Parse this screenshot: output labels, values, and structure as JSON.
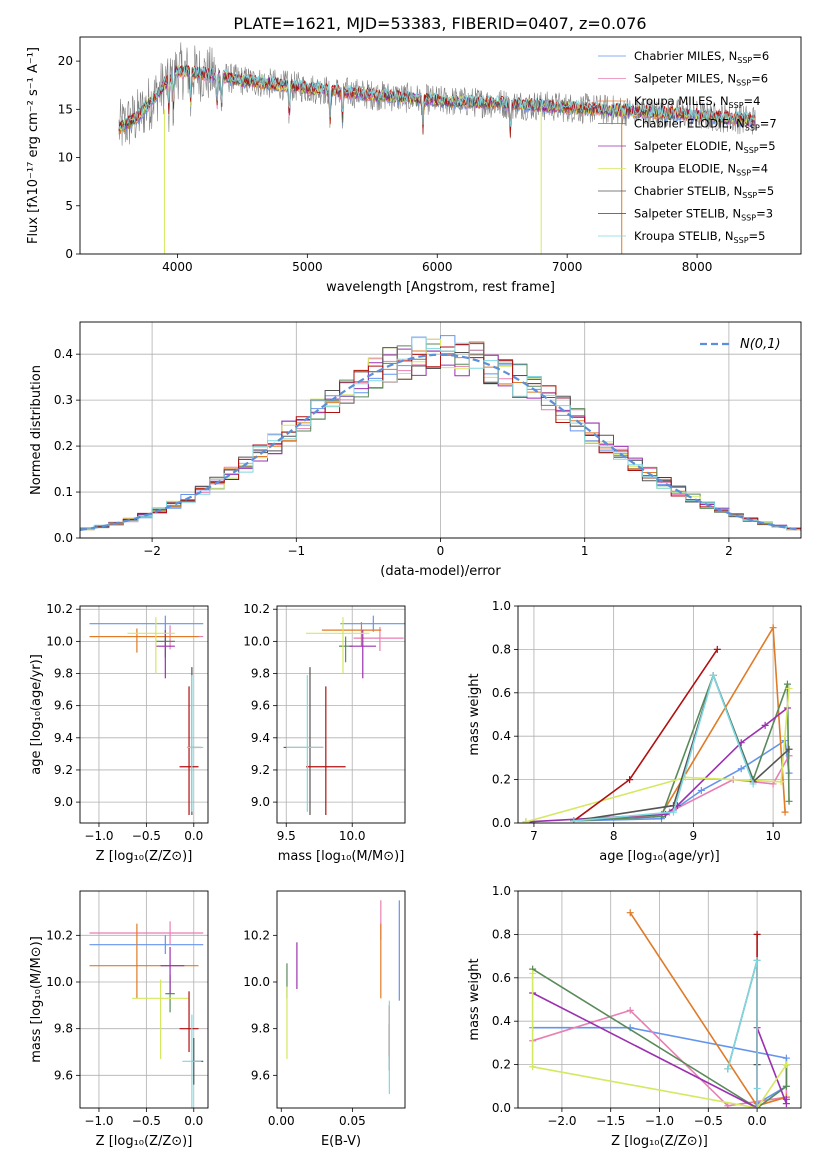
{
  "figure_title": "PLATE=1621, MJD=53383, FIBERID=0407, z=0.076",
  "models": [
    {
      "label": "Chabrier MILES, N",
      "sub": "SSP",
      "n": "=6",
      "color": "#6495ed"
    },
    {
      "label": "Salpeter MILES, N",
      "sub": "SSP",
      "n": "=6",
      "color": "#e87fb3"
    },
    {
      "label": "Kroupa MILES, N",
      "sub": "SSP",
      "n": "=4",
      "color": "#e07b27"
    },
    {
      "label": "Chabrier ELODIE, N",
      "sub": "SSP",
      "n": "=7",
      "color": "#5a8a5a"
    },
    {
      "label": "Salpeter ELODIE, N",
      "sub": "SSP",
      "n": "=5",
      "color": "#9b30b0"
    },
    {
      "label": "Kroupa ELODIE, N",
      "sub": "SSP",
      "n": "=4",
      "color": "#d4e860"
    },
    {
      "label": "Chabrier STELIB, N",
      "sub": "SSP",
      "n": "=5",
      "color": "#555555"
    },
    {
      "label": "Salpeter STELIB, N",
      "sub": "SSP",
      "n": "=3",
      "color": "#b01010"
    },
    {
      "label": "Kroupa STELIB, N",
      "sub": "SSP",
      "n": "=5",
      "color": "#7fd8e0"
    }
  ],
  "chart_data": [
    {
      "id": "spectrum",
      "type": "line",
      "xlabel": "wavelength [Angstrom, rest frame]",
      "ylabel": "Flux [fλ10⁻¹⁷ erg cm⁻² s⁻¹ A⁻¹]",
      "xlim": [
        3250,
        8800
      ],
      "ylim": [
        0,
        22.5
      ],
      "xticks": [
        "4000",
        "5000",
        "6000",
        "7000",
        "8000"
      ],
      "yticks": [
        "0",
        "5",
        "10",
        "15",
        "20"
      ],
      "continuum_anchors": {
        "x": [
          3550,
          3700,
          3900,
          4000,
          4200,
          4500,
          5000,
          5500,
          6000,
          6500,
          7000,
          7500,
          8000,
          8500
        ],
        "y": [
          13.0,
          14.3,
          17.5,
          19.0,
          18.7,
          18.0,
          17.2,
          16.5,
          15.9,
          15.6,
          15.2,
          14.8,
          14.4,
          13.8
        ]
      },
      "absorption_lines": [
        3934,
        3969,
        4102,
        4304,
        4340,
        4861,
        5175,
        5270,
        5890,
        6563,
        8498,
        8542,
        8662
      ]
    },
    {
      "id": "residuals",
      "type": "histogram",
      "xlabel": "(data-model)/error",
      "ylabel": "Normed distribution",
      "xlim": [
        -2.5,
        2.5
      ],
      "ylim": [
        0,
        0.47
      ],
      "xticks": [
        "−2",
        "−1",
        "0",
        "1",
        "2"
      ],
      "yticks": [
        "0.0",
        "0.1",
        "0.2",
        "0.3",
        "0.4"
      ],
      "grid": true,
      "bin_width": 0.1,
      "curve_label": "N(0,1)",
      "curve_color": "#5b8fd9"
    },
    {
      "id": "age-vs-z",
      "type": "errorbar",
      "xlabel": "Z [log₁₀(Z/Z⊙)]",
      "ylabel": "age  [log₁₀(age/yr)]",
      "xlim": [
        -1.2,
        0.15
      ],
      "ylim": [
        8.87,
        10.22
      ],
      "xticks": [
        "−1.0",
        "−0.5",
        "0.0"
      ],
      "yticks": [
        "9.0",
        "9.2",
        "9.4",
        "9.6",
        "9.8",
        "10.0",
        "10.2"
      ],
      "grid": true,
      "points": [
        {
          "m": 0,
          "x": -0.3,
          "y": 10.11,
          "xe": [
            0.8,
            0.4
          ],
          "ye": [
            0.05,
            0.05
          ]
        },
        {
          "m": 1,
          "x": -0.25,
          "y": 10.03,
          "xe": [
            0.85,
            0.35
          ],
          "ye": [
            0.08,
            0.07
          ]
        },
        {
          "m": 2,
          "x": -0.6,
          "y": 10.03,
          "xe": [
            0.5,
            0.65
          ],
          "ye": [
            0.1,
            0.05
          ]
        },
        {
          "m": 3,
          "x": -0.3,
          "y": 10.0,
          "xe": [
            0.1,
            0.1
          ],
          "ye": [
            0.1,
            0.06
          ]
        },
        {
          "m": 4,
          "x": -0.3,
          "y": 9.97,
          "xe": [
            0.1,
            0.1
          ],
          "ye": [
            0.2,
            0.1
          ]
        },
        {
          "m": 5,
          "x": -0.4,
          "y": 10.05,
          "xe": [
            0.3,
            0.2
          ],
          "ye": [
            0.25,
            0.1
          ]
        },
        {
          "m": 6,
          "x": -0.02,
          "y": 9.34,
          "xe": [
            0.05,
            0.1
          ],
          "ye": [
            0.42,
            0.5
          ]
        },
        {
          "m": 7,
          "x": -0.05,
          "y": 9.22,
          "xe": [
            0.1,
            0.1
          ],
          "ye": [
            0.3,
            0.5
          ]
        },
        {
          "m": 8,
          "x": -0.02,
          "y": 9.34,
          "xe": [
            0.05,
            0.12
          ],
          "ye": [
            0.4,
            0.45
          ]
        }
      ]
    },
    {
      "id": "age-vs-mass",
      "type": "errorbar",
      "xlabel": "mass [log₁₀(M/M⊙)]",
      "ylabel": "",
      "xlim": [
        9.43,
        10.4
      ],
      "ylim": [
        8.87,
        10.22
      ],
      "xticks": [
        "9.5",
        "10.0"
      ],
      "yticks": [
        "9.0",
        "9.2",
        "9.4",
        "9.6",
        "9.8",
        "10.0",
        "10.2"
      ],
      "grid": true,
      "points": [
        {
          "m": 0,
          "x": 10.16,
          "y": 10.11,
          "xe": [
            0.25,
            0.25
          ],
          "ye": [
            0.05,
            0.05
          ]
        },
        {
          "m": 1,
          "x": 10.21,
          "y": 10.02,
          "xe": [
            0.2,
            0.18
          ],
          "ye": [
            0.08,
            0.07
          ]
        },
        {
          "m": 2,
          "x": 10.07,
          "y": 10.07,
          "xe": [
            0.3,
            0.15
          ],
          "ye": [
            0.1,
            0.05
          ]
        },
        {
          "m": 3,
          "x": 9.95,
          "y": 9.97,
          "xe": [
            0.05,
            0.05
          ],
          "ye": [
            0.1,
            0.06
          ]
        },
        {
          "m": 4,
          "x": 10.08,
          "y": 9.97,
          "xe": [
            0.1,
            0.1
          ],
          "ye": [
            0.2,
            0.1
          ]
        },
        {
          "m": 5,
          "x": 9.93,
          "y": 10.05,
          "xe": [
            0.28,
            0.2
          ],
          "ye": [
            0.25,
            0.1
          ]
        },
        {
          "m": 6,
          "x": 9.68,
          "y": 9.34,
          "xe": [
            0.2,
            0.1
          ],
          "ye": [
            0.42,
            0.5
          ]
        },
        {
          "m": 7,
          "x": 9.8,
          "y": 9.22,
          "xe": [
            0.15,
            0.15
          ],
          "ye": [
            0.3,
            0.5
          ]
        },
        {
          "m": 8,
          "x": 9.66,
          "y": 9.34,
          "xe": [
            0.16,
            0.12
          ],
          "ye": [
            0.4,
            0.45
          ]
        }
      ]
    },
    {
      "id": "mass-weight-vs-age",
      "type": "line",
      "xlabel": "age  [log₁₀(age/yr)]",
      "ylabel": "mass weight",
      "xlim": [
        6.8,
        10.35
      ],
      "ylim": [
        0,
        1.0
      ],
      "xticks": [
        "7",
        "8",
        "9",
        "10"
      ],
      "yticks": [
        "0.0",
        "0.2",
        "0.4",
        "0.6",
        "0.8",
        "1.0"
      ],
      "grid": true,
      "series": [
        {
          "m": 0,
          "x": [
            7.5,
            8.6,
            8.75,
            9.1,
            9.6,
            10.15,
            10.2
          ],
          "y": [
            0.01,
            0.02,
            0.06,
            0.15,
            0.25,
            0.38,
            0.23
          ]
        },
        {
          "m": 1,
          "x": [
            7.5,
            8.5,
            8.7,
            9.5,
            10.0,
            10.2
          ],
          "y": [
            0.01,
            0.03,
            0.05,
            0.2,
            0.18,
            0.31
          ]
        },
        {
          "m": 2,
          "x": [
            7.5,
            8.6,
            10.0,
            10.15
          ],
          "y": [
            0.01,
            0.04,
            0.9,
            0.05
          ]
        },
        {
          "m": 3,
          "x": [
            7.5,
            8.6,
            9.25,
            9.75,
            10.18,
            10.2
          ],
          "y": [
            0.01,
            0.03,
            0.68,
            0.2,
            0.64,
            0.1
          ]
        },
        {
          "m": 4,
          "x": [
            6.9,
            8.65,
            8.8,
            9.6,
            9.9,
            10.18
          ],
          "y": [
            0.005,
            0.04,
            0.08,
            0.37,
            0.45,
            0.53
          ]
        },
        {
          "m": 5,
          "x": [
            6.9,
            8.9,
            10.1,
            10.2
          ],
          "y": [
            0.005,
            0.21,
            0.19,
            0.62
          ]
        },
        {
          "m": 6,
          "x": [
            7.5,
            8.75,
            9.25,
            9.75,
            10.2
          ],
          "y": [
            0.01,
            0.08,
            0.68,
            0.19,
            0.34
          ]
        },
        {
          "m": 7,
          "x": [
            7.5,
            8.2,
            9.3
          ],
          "y": [
            0.01,
            0.2,
            0.8
          ]
        },
        {
          "m": 8,
          "x": [
            7.5,
            8.75,
            9.25,
            9.75
          ],
          "y": [
            0.01,
            0.05,
            0.68,
            0.18
          ]
        }
      ]
    },
    {
      "id": "mass-vs-z",
      "type": "errorbar",
      "xlabel": "Z [log₁₀(Z/Z⊙)]",
      "ylabel": "mass [log₁₀(M/M⊙)]",
      "xlim": [
        -1.2,
        0.15
      ],
      "ylim": [
        9.46,
        10.39
      ],
      "xticks": [
        "−1.0",
        "−0.5",
        "0.0"
      ],
      "yticks": [
        "9.6",
        "9.8",
        "10.0",
        "10.2"
      ],
      "grid": true,
      "points": [
        {
          "m": 0,
          "x": -0.3,
          "y": 10.16,
          "xe": [
            0.8,
            0.4
          ],
          "ye": [
            0.04,
            0.04
          ]
        },
        {
          "m": 1,
          "x": -0.25,
          "y": 10.21,
          "xe": [
            0.85,
            0.35
          ],
          "ye": [
            0.05,
            0.05
          ]
        },
        {
          "m": 2,
          "x": -0.6,
          "y": 10.07,
          "xe": [
            0.5,
            0.65
          ],
          "ye": [
            0.14,
            0.18
          ]
        },
        {
          "m": 3,
          "x": -0.25,
          "y": 9.95,
          "xe": [
            0.05,
            0.05
          ],
          "ye": [
            0.08,
            0.08
          ]
        },
        {
          "m": 4,
          "x": -0.25,
          "y": 10.07,
          "xe": [
            0.1,
            0.15
          ],
          "ye": [
            0.12,
            0.08
          ]
        },
        {
          "m": 5,
          "x": -0.35,
          "y": 9.93,
          "xe": [
            0.3,
            0.3
          ],
          "ye": [
            0.26,
            0.08
          ]
        },
        {
          "m": 6,
          "x": 0.0,
          "y": 9.66,
          "xe": [
            0.02,
            0.1
          ],
          "ye": [
            0.1,
            0.1
          ]
        },
        {
          "m": 7,
          "x": -0.05,
          "y": 9.8,
          "xe": [
            0.1,
            0.1
          ],
          "ye": [
            0.1,
            0.16
          ]
        },
        {
          "m": 8,
          "x": -0.02,
          "y": 9.66,
          "xe": [
            0.1,
            0.1
          ],
          "ye": [
            0.2,
            0.2
          ]
        }
      ]
    },
    {
      "id": "mass-vs-ebv",
      "type": "errorbar",
      "xlabel": "E(B-V)",
      "ylabel": "",
      "xlim": [
        -0.003,
        0.087
      ],
      "ylim": [
        9.46,
        10.39
      ],
      "xticks": [
        "0.00",
        "0.05"
      ],
      "yticks": [
        "9.6",
        "9.8",
        "10.0",
        "10.2"
      ],
      "grid": false,
      "points": [
        {
          "m": 0,
          "x": 0.083,
          "y": 10.13,
          "xe": [
            0.0,
            0.0
          ],
          "ye": [
            0.21,
            0.22
          ]
        },
        {
          "m": 1,
          "x": 0.07,
          "y": 10.22,
          "xe": [
            0.0,
            0.0
          ],
          "ye": [
            0.04,
            0.13
          ]
        },
        {
          "m": 2,
          "x": 0.07,
          "y": 10.1,
          "xe": [
            0.0,
            0.0
          ],
          "ye": [
            0.17,
            0.15
          ]
        },
        {
          "m": 3,
          "x": 0.004,
          "y": 9.98,
          "xe": [
            0.0,
            0.0
          ],
          "ye": [
            0.05,
            0.1
          ]
        },
        {
          "m": 4,
          "x": 0.011,
          "y": 10.07,
          "xe": [
            0.0,
            0.0
          ],
          "ye": [
            0.1,
            0.1
          ]
        },
        {
          "m": 5,
          "x": 0.004,
          "y": 9.87,
          "xe": [
            0.0,
            0.0
          ],
          "ye": [
            0.2,
            0.11
          ]
        },
        {
          "m": 6,
          "x": 0.076,
          "y": 9.72,
          "xe": [
            0.0,
            0.0
          ],
          "ye": [
            0.1,
            0.1
          ]
        },
        {
          "m": 7,
          "x": 0.076,
          "y": 9.78,
          "xe": [
            0.0,
            0.0
          ],
          "ye": [
            0.1,
            0.12
          ]
        },
        {
          "m": 8,
          "x": 0.076,
          "y": 9.72,
          "xe": [
            0.0,
            0.0
          ],
          "ye": [
            0.2,
            0.2
          ]
        }
      ]
    },
    {
      "id": "mass-weight-vs-z",
      "type": "line",
      "xlabel": "Z [log₁₀(Z/Z⊙)]",
      "ylabel": "mass weight",
      "xlim": [
        -2.45,
        0.45
      ],
      "ylim": [
        0,
        1.0
      ],
      "xticks": [
        "−2.0",
        "−1.5",
        "−1.0",
        "−0.5",
        "0.0"
      ],
      "yticks": [
        "0.0",
        "0.2",
        "0.4",
        "0.6",
        "0.8",
        "1.0"
      ],
      "grid": true,
      "series": [
        {
          "m": 0,
          "x": [
            -2.3,
            -1.3,
            0.3,
            0.3,
            0.0
          ],
          "y": [
            0.37,
            0.37,
            0.23,
            0.1,
            0.02
          ]
        },
        {
          "m": 1,
          "x": [
            -2.3,
            -1.3,
            -0.3,
            0.3,
            0.3
          ],
          "y": [
            0.31,
            0.45,
            0.01,
            0.05,
            0.2
          ]
        },
        {
          "m": 2,
          "x": [
            -1.3,
            0.0,
            0.3
          ],
          "y": [
            0.9,
            0.01,
            0.05
          ]
        },
        {
          "m": 3,
          "x": [
            -2.3,
            0.0,
            0.3,
            0.3
          ],
          "y": [
            0.64,
            0.0,
            0.1,
            0.2
          ]
        },
        {
          "m": 4,
          "x": [
            -2.3,
            0.0,
            0.0,
            0.3,
            0.3
          ],
          "y": [
            0.53,
            0.0,
            0.37,
            0.02,
            0.04
          ]
        },
        {
          "m": 5,
          "x": [
            -2.3,
            -2.3,
            0.0,
            0.3
          ],
          "y": [
            0.62,
            0.19,
            0.0,
            0.2
          ]
        },
        {
          "m": 6,
          "x": [
            -0.3,
            0.0,
            0.0
          ],
          "y": [
            0.18,
            0.68,
            0.2
          ]
        },
        {
          "m": 7,
          "x": [
            0.0,
            0.0
          ],
          "y": [
            0.8,
            0.0
          ]
        },
        {
          "m": 8,
          "x": [
            -0.3,
            0.0,
            0.0,
            0.0
          ],
          "y": [
            0.18,
            0.68,
            0.09,
            0.0
          ]
        }
      ]
    }
  ]
}
